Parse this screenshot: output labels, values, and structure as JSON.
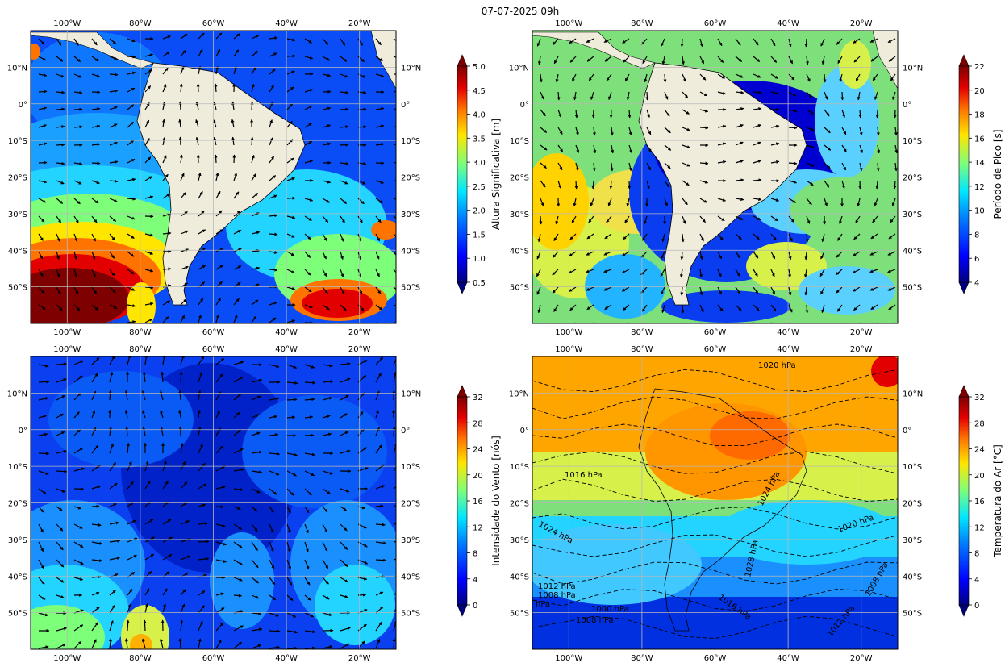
{
  "figure": {
    "title": "07-07-2025 09h"
  },
  "colors": {
    "land": "#efecdc",
    "grid": "#b8b8b8",
    "frame": "#000000",
    "jet": [
      "#00007f",
      "#0000ff",
      "#0080ff",
      "#00e6ff",
      "#7dff7a",
      "#ffe600",
      "#ff7300",
      "#e30000",
      "#7f0000"
    ]
  },
  "axes_labels": {
    "lon": [
      "100°W",
      "80°W",
      "60°W",
      "40°W",
      "20°W"
    ],
    "lat": [
      "10°N",
      "0°",
      "10°S",
      "20°S",
      "30°S",
      "40°S",
      "50°S"
    ]
  },
  "chart_data": [
    {
      "type": "heatmap",
      "panel": "top-left",
      "variable": "Altura Significativa [m]",
      "colorbar": {
        "label": "Altura Significativa [m]",
        "range": [
          0.5,
          5.0
        ],
        "ticks": [
          "0.5",
          "1.0",
          "1.5",
          "2.0",
          "2.5",
          "3.0",
          "3.5",
          "4.0",
          "4.5",
          "5.0"
        ],
        "extend": "both"
      },
      "map_extent": {
        "lon": [
          -110,
          -10
        ],
        "lat": [
          -60,
          20
        ]
      },
      "grid": true,
      "vectors": "wave direction arrows"
    },
    {
      "type": "heatmap",
      "panel": "top-right",
      "variable": "Período de Pico [s]",
      "colorbar": {
        "label": "Período de Pico [s]",
        "range": [
          4,
          22
        ],
        "ticks": [
          "4",
          "6",
          "8",
          "10",
          "12",
          "14",
          "16",
          "18",
          "20",
          "22"
        ],
        "extend": "both"
      },
      "map_extent": {
        "lon": [
          -110,
          -10
        ],
        "lat": [
          -60,
          20
        ]
      },
      "grid": true,
      "vectors": "wave direction arrows"
    },
    {
      "type": "heatmap",
      "panel": "bottom-left",
      "variable": "Intensidade do Vento [nós]",
      "colorbar": {
        "label": "Intensidade do Vento [nós]",
        "range": [
          0,
          32
        ],
        "ticks": [
          "0",
          "4",
          "8",
          "12",
          "16",
          "20",
          "24",
          "28",
          "32"
        ],
        "extend": "both"
      },
      "map_extent": {
        "lon": [
          -110,
          -10
        ],
        "lat": [
          -60,
          20
        ]
      },
      "grid": true,
      "vectors": "wind arrows"
    },
    {
      "type": "heatmap",
      "panel": "bottom-right",
      "variable": "Temperatura do Ar [°C]",
      "colorbar": {
        "label": "Temperatura do Ar [°C]",
        "range": [
          0,
          32
        ],
        "ticks": [
          "0",
          "4",
          "8",
          "12",
          "16",
          "20",
          "24",
          "28",
          "32"
        ],
        "extend": "both"
      },
      "map_extent": {
        "lon": [
          -110,
          -10
        ],
        "lat": [
          -60,
          20
        ]
      },
      "grid": true,
      "contour_labels": [
        "1020 hPa",
        "1016 hPa",
        "1024 hPa",
        "1024 hPa",
        "1028 hPa",
        "1020 hPa",
        "1016 hPa",
        "1008 hPa",
        "1012 hPa",
        "1008 hPa",
        "1000 hPa",
        "1008 hPa",
        "1012 hPa",
        "hPa"
      ]
    }
  ]
}
